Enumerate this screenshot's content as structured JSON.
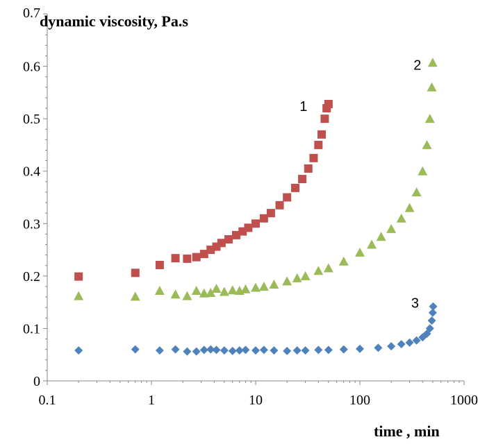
{
  "chart_data": {
    "type": "scatter",
    "title": "",
    "ylabel": "dynamic viscosity, Pa.s",
    "xlabel": "time , min",
    "xscale": "log",
    "xlim": [
      0.1,
      1000
    ],
    "ylim": [
      0,
      0.7
    ],
    "x_ticks": [
      "0.1",
      "1",
      "10",
      "100",
      "1000"
    ],
    "y_ticks": [
      "0",
      "0.1",
      "0.2",
      "0.3",
      "0.4",
      "0.5",
      "0.6",
      "0.7"
    ],
    "grid": false,
    "legend": "none",
    "series": [
      {
        "label": "1",
        "marker": "square",
        "color": "#c0504d",
        "points": [
          [
            0.2,
            0.199
          ],
          [
            0.7,
            0.206
          ],
          [
            1.2,
            0.221
          ],
          [
            1.7,
            0.234
          ],
          [
            2.2,
            0.233
          ],
          [
            2.7,
            0.236
          ],
          [
            3.2,
            0.242
          ],
          [
            3.7,
            0.25
          ],
          [
            4.2,
            0.256
          ],
          [
            4.7,
            0.263
          ],
          [
            5.5,
            0.27
          ],
          [
            6.5,
            0.278
          ],
          [
            7.5,
            0.285
          ],
          [
            8.5,
            0.292
          ],
          [
            10,
            0.3
          ],
          [
            12,
            0.31
          ],
          [
            14,
            0.32
          ],
          [
            17,
            0.335
          ],
          [
            20,
            0.35
          ],
          [
            24,
            0.368
          ],
          [
            28,
            0.385
          ],
          [
            32,
            0.405
          ],
          [
            36,
            0.425
          ],
          [
            40,
            0.45
          ],
          [
            43,
            0.47
          ],
          [
            46,
            0.5
          ],
          [
            48,
            0.52
          ],
          [
            50,
            0.528
          ]
        ]
      },
      {
        "label": "2",
        "marker": "triangle",
        "color": "#9bbb59",
        "points": [
          [
            0.2,
            0.162
          ],
          [
            0.7,
            0.161
          ],
          [
            1.2,
            0.172
          ],
          [
            1.7,
            0.165
          ],
          [
            2.2,
            0.162
          ],
          [
            2.7,
            0.172
          ],
          [
            3.2,
            0.167
          ],
          [
            3.7,
            0.168
          ],
          [
            4.2,
            0.176
          ],
          [
            5,
            0.17
          ],
          [
            6,
            0.173
          ],
          [
            7,
            0.172
          ],
          [
            8,
            0.175
          ],
          [
            10,
            0.178
          ],
          [
            12,
            0.18
          ],
          [
            15,
            0.184
          ],
          [
            20,
            0.19
          ],
          [
            25,
            0.196
          ],
          [
            30,
            0.2
          ],
          [
            40,
            0.21
          ],
          [
            50,
            0.215
          ],
          [
            70,
            0.228
          ],
          [
            100,
            0.245
          ],
          [
            130,
            0.26
          ],
          [
            160,
            0.275
          ],
          [
            200,
            0.29
          ],
          [
            250,
            0.31
          ],
          [
            300,
            0.33
          ],
          [
            350,
            0.36
          ],
          [
            400,
            0.4
          ],
          [
            440,
            0.45
          ],
          [
            470,
            0.5
          ],
          [
            490,
            0.56
          ],
          [
            500,
            0.607
          ]
        ]
      },
      {
        "label": "3",
        "marker": "diamond",
        "color": "#4f81bd",
        "points": [
          [
            0.2,
            0.058
          ],
          [
            0.7,
            0.06
          ],
          [
            1.2,
            0.058
          ],
          [
            1.7,
            0.06
          ],
          [
            2.2,
            0.056
          ],
          [
            2.7,
            0.056
          ],
          [
            3.2,
            0.059
          ],
          [
            3.7,
            0.06
          ],
          [
            4.2,
            0.059
          ],
          [
            5,
            0.058
          ],
          [
            6,
            0.057
          ],
          [
            7,
            0.058
          ],
          [
            8,
            0.059
          ],
          [
            10,
            0.058
          ],
          [
            12,
            0.059
          ],
          [
            15,
            0.058
          ],
          [
            20,
            0.057
          ],
          [
            25,
            0.058
          ],
          [
            30,
            0.058
          ],
          [
            40,
            0.059
          ],
          [
            50,
            0.059
          ],
          [
            70,
            0.06
          ],
          [
            100,
            0.061
          ],
          [
            150,
            0.063
          ],
          [
            200,
            0.066
          ],
          [
            250,
            0.07
          ],
          [
            300,
            0.073
          ],
          [
            350,
            0.077
          ],
          [
            400,
            0.083
          ],
          [
            440,
            0.09
          ],
          [
            470,
            0.1
          ],
          [
            490,
            0.115
          ],
          [
            500,
            0.13
          ],
          [
            505,
            0.142
          ]
        ]
      }
    ]
  }
}
